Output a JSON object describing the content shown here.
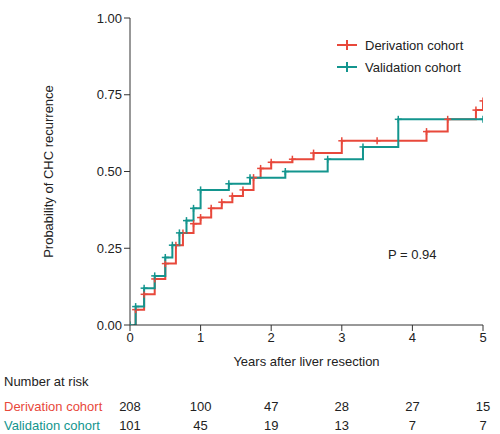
{
  "chart_data": {
    "type": "line",
    "line_style": "step",
    "marker": "plus",
    "legend": "top right",
    "x_label": "Years after liver resection",
    "y_label": "Probability of CHC recurrence",
    "xlim": [
      0,
      5
    ],
    "xticks": [
      0,
      1,
      2,
      3,
      4,
      5
    ],
    "ylim": [
      0,
      1
    ],
    "yticks": [
      {
        "value": 0,
        "label": "0.00"
      },
      0.25,
      {
        "value": 0.5,
        "label": "0.50"
      },
      0.75,
      {
        "value": 1,
        "label": "1.00"
      }
    ],
    "annotations": [
      "P = 0.94"
    ],
    "series": [
      {
        "name": "Derivation cohort",
        "color": "#e8483b",
        "x": [
          0,
          0.08,
          0.2,
          0.35,
          0.5,
          0.65,
          0.75,
          0.9,
          1.0,
          1.15,
          1.3,
          1.45,
          1.6,
          1.75,
          1.85,
          2.0,
          2.3,
          2.6,
          3.0,
          3.5,
          4.2,
          4.5,
          4.9,
          5.0
        ],
        "values": [
          0,
          0.05,
          0.1,
          0.15,
          0.2,
          0.26,
          0.3,
          0.33,
          0.35,
          0.38,
          0.4,
          0.42,
          0.44,
          0.48,
          0.51,
          0.53,
          0.54,
          0.56,
          0.6,
          0.6,
          0.63,
          0.67,
          0.7,
          0.73
        ]
      },
      {
        "name": "Validation cohort",
        "color": "#13958e",
        "x": [
          0,
          0.08,
          0.2,
          0.35,
          0.5,
          0.6,
          0.7,
          0.8,
          0.9,
          1.0,
          1.4,
          1.7,
          2.2,
          2.8,
          3.3,
          3.8,
          5.0
        ],
        "values": [
          0,
          0.06,
          0.12,
          0.16,
          0.22,
          0.26,
          0.3,
          0.34,
          0.38,
          0.44,
          0.46,
          0.48,
          0.5,
          0.54,
          0.58,
          0.67,
          0.67
        ]
      }
    ],
    "number_at_risk": {
      "title": "Number at risk",
      "rows": [
        {
          "name": "Derivation cohort",
          "values": [
            208,
            100,
            47,
            28,
            27,
            15
          ]
        },
        {
          "name": "Validation cohort",
          "values": [
            101,
            45,
            19,
            13,
            7,
            7
          ]
        }
      ]
    }
  }
}
